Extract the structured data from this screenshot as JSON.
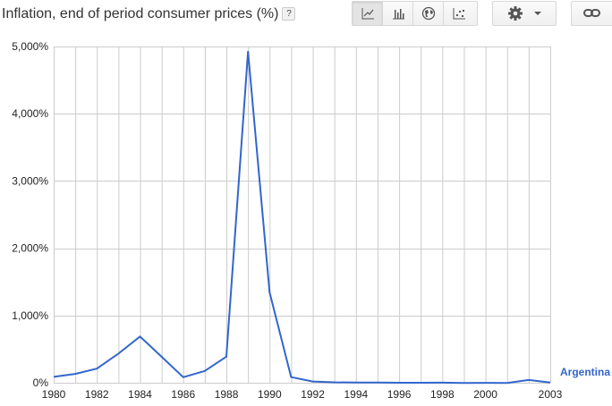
{
  "header": {
    "title": "Inflation, end of period consumer prices (%)",
    "help_label": "?"
  },
  "toolbar": {
    "chart_types": [
      {
        "name": "line-chart-icon",
        "active": true
      },
      {
        "name": "bar-chart-icon",
        "active": false
      },
      {
        "name": "map-icon",
        "active": false
      },
      {
        "name": "scatter-icon",
        "active": false
      }
    ],
    "settings_icon": "gear-icon",
    "link_icon": "link-icon"
  },
  "colors": {
    "series": "#3366cc",
    "grid": "#cccccc",
    "toolbar_border": "#d8d8d8"
  },
  "chart_data": {
    "type": "line",
    "title": "Inflation, end of period consumer prices (%)",
    "xlabel": "",
    "ylabel": "",
    "xlim": [
      1980,
      2003
    ],
    "ylim": [
      0,
      5000
    ],
    "x_ticks": [
      1980,
      1982,
      1984,
      1986,
      1988,
      1990,
      1992,
      1994,
      1996,
      1998,
      2000,
      2003
    ],
    "y_ticks": [
      0,
      1000,
      2000,
      3000,
      4000,
      5000
    ],
    "y_tick_labels": [
      "0%",
      "1,000%",
      "2,000%",
      "3,000%",
      "4,000%",
      "5,000%"
    ],
    "grid": true,
    "legend": "end-of-line",
    "series": [
      {
        "name": "Argentina",
        "color": "#3366cc",
        "x": [
          1980,
          1981,
          1982,
          1983,
          1984,
          1985,
          1986,
          1987,
          1988,
          1989,
          1990,
          1991,
          1992,
          1993,
          1994,
          1995,
          1996,
          1997,
          1998,
          1999,
          2000,
          2001,
          2002,
          2003
        ],
        "values": [
          88,
          131,
          210,
          434,
          688,
          385,
          82,
          175,
          388,
          4923,
          1344,
          84,
          18,
          7,
          4,
          2,
          0,
          0,
          1,
          -2,
          -1,
          -2,
          41,
          4
        ]
      }
    ]
  }
}
